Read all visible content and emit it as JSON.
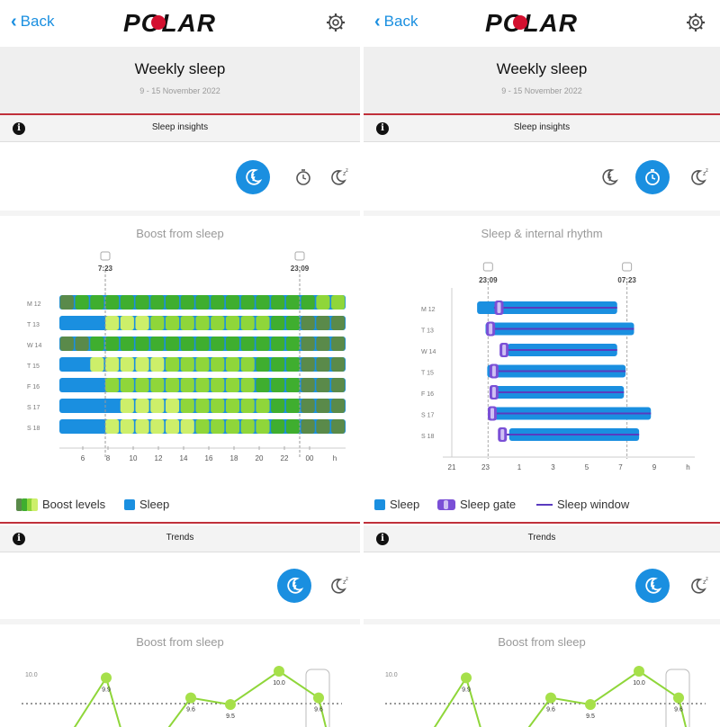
{
  "screens": [
    {
      "nav": {
        "back_label": "Back",
        "logo": "POLAR"
      },
      "header": {
        "title": "Weekly sleep",
        "date": "9 - 15 November 2022"
      },
      "insights_bar": {
        "label": "Sleep insights"
      },
      "chart_title": "Boost from sleep",
      "chart_data": {
        "type": "heatmap",
        "title": "Boost from sleep",
        "rows": [
          "M 12",
          "T 13",
          "W 14",
          "T 15",
          "F 16",
          "S 17",
          "S 18"
        ],
        "x_ticks": [
          "6",
          "8",
          "10",
          "12",
          "14",
          "16",
          "18",
          "20",
          "22",
          "00",
          "h"
        ],
        "markers": [
          {
            "label": "7:23",
            "icon": "wake-icon"
          },
          {
            "label": "23:09",
            "icon": "bedtime-icon"
          }
        ],
        "levels": [
          [
            1,
            2,
            2,
            2,
            2,
            2,
            2,
            2,
            2,
            2,
            2,
            2,
            2,
            2,
            2,
            2,
            2,
            3,
            3
          ],
          [
            0,
            0,
            0,
            4,
            4,
            4,
            3,
            3,
            3,
            3,
            3,
            3,
            3,
            3,
            2,
            2,
            1,
            1,
            1
          ],
          [
            1,
            1,
            2,
            2,
            2,
            2,
            2,
            2,
            2,
            2,
            2,
            2,
            2,
            2,
            2,
            2,
            1,
            1,
            1
          ],
          [
            0,
            0,
            4,
            4,
            4,
            4,
            4,
            3,
            3,
            3,
            3,
            3,
            3,
            2,
            2,
            2,
            1,
            1,
            1
          ],
          [
            0,
            0,
            0,
            3,
            3,
            3,
            3,
            3,
            3,
            3,
            3,
            3,
            3,
            2,
            2,
            2,
            1,
            1,
            1
          ],
          [
            0,
            0,
            0,
            0,
            4,
            4,
            4,
            4,
            3,
            3,
            3,
            3,
            3,
            3,
            2,
            2,
            1,
            1,
            1
          ],
          [
            0,
            0,
            0,
            4,
            4,
            4,
            4,
            4,
            4,
            3,
            3,
            3,
            3,
            3,
            2,
            2,
            1,
            1,
            1
          ]
        ],
        "level_colors": [
          "#1a8fe0",
          "#5a8a4a",
          "#3fae2f",
          "#8fd63a",
          "#cdef6a"
        ]
      },
      "legend": [
        {
          "label": "Boost levels"
        },
        {
          "label": "Sleep"
        }
      ],
      "trends_bar": {
        "label": "Trends"
      },
      "trend_title": "Boost from sleep",
      "trend_chart": {
        "type": "line",
        "y_ticks": [
          "10.0"
        ],
        "points": [
          {
            "label": "9.9",
            "value": 9.9
          },
          {
            "label": "9.6",
            "value": 9.6
          },
          {
            "label": "9.5",
            "value": 9.5
          },
          {
            "label": "10.0",
            "value": 10.0
          },
          {
            "label": "9.6",
            "value": 9.6
          }
        ]
      }
    },
    {
      "nav": {
        "back_label": "Back",
        "logo": "POLAR"
      },
      "header": {
        "title": "Weekly sleep",
        "date": "9 - 15 November 2022"
      },
      "insights_bar": {
        "label": "Sleep insights"
      },
      "chart_title": "Sleep & internal rhythm",
      "chart_data": {
        "type": "bar",
        "title": "Sleep & internal rhythm",
        "rows": [
          "M 12",
          "T 13",
          "W 14",
          "T 15",
          "F 16",
          "S 17",
          "S 18"
        ],
        "x_ticks": [
          "21",
          "23",
          "1",
          "3",
          "5",
          "7",
          "9",
          "h"
        ],
        "markers": [
          {
            "label": "23:09",
            "icon": "bedtime-icon"
          },
          {
            "label": "07:23",
            "icon": "wake-icon"
          }
        ],
        "sleep_start": [
          22.5,
          23.0,
          0.3,
          23.1,
          23.3,
          23.4,
          0.4
        ],
        "sleep_end": [
          6.8,
          7.8,
          6.8,
          7.3,
          7.2,
          8.8,
          8.1
        ],
        "gate": [
          23.8,
          23.3,
          0.1,
          23.5,
          23.5,
          23.4,
          0.0
        ],
        "window_start": [
          23.5,
          23.1,
          0.1,
          23.3,
          23.3,
          23.3,
          0.0
        ]
      },
      "legend": [
        {
          "label": "Sleep"
        },
        {
          "label": "Sleep gate"
        },
        {
          "label": "Sleep window"
        }
      ],
      "trends_bar": {
        "label": "Trends"
      },
      "trend_title": "Boost from sleep",
      "trend_chart": {
        "type": "line",
        "y_ticks": [
          "10.0"
        ],
        "points": [
          {
            "label": "9.9",
            "value": 9.9
          },
          {
            "label": "9.6",
            "value": 9.6
          },
          {
            "label": "9.5",
            "value": 9.5
          },
          {
            "label": "10.0",
            "value": 10.0
          },
          {
            "label": "9.6",
            "value": 9.6
          }
        ]
      }
    }
  ]
}
